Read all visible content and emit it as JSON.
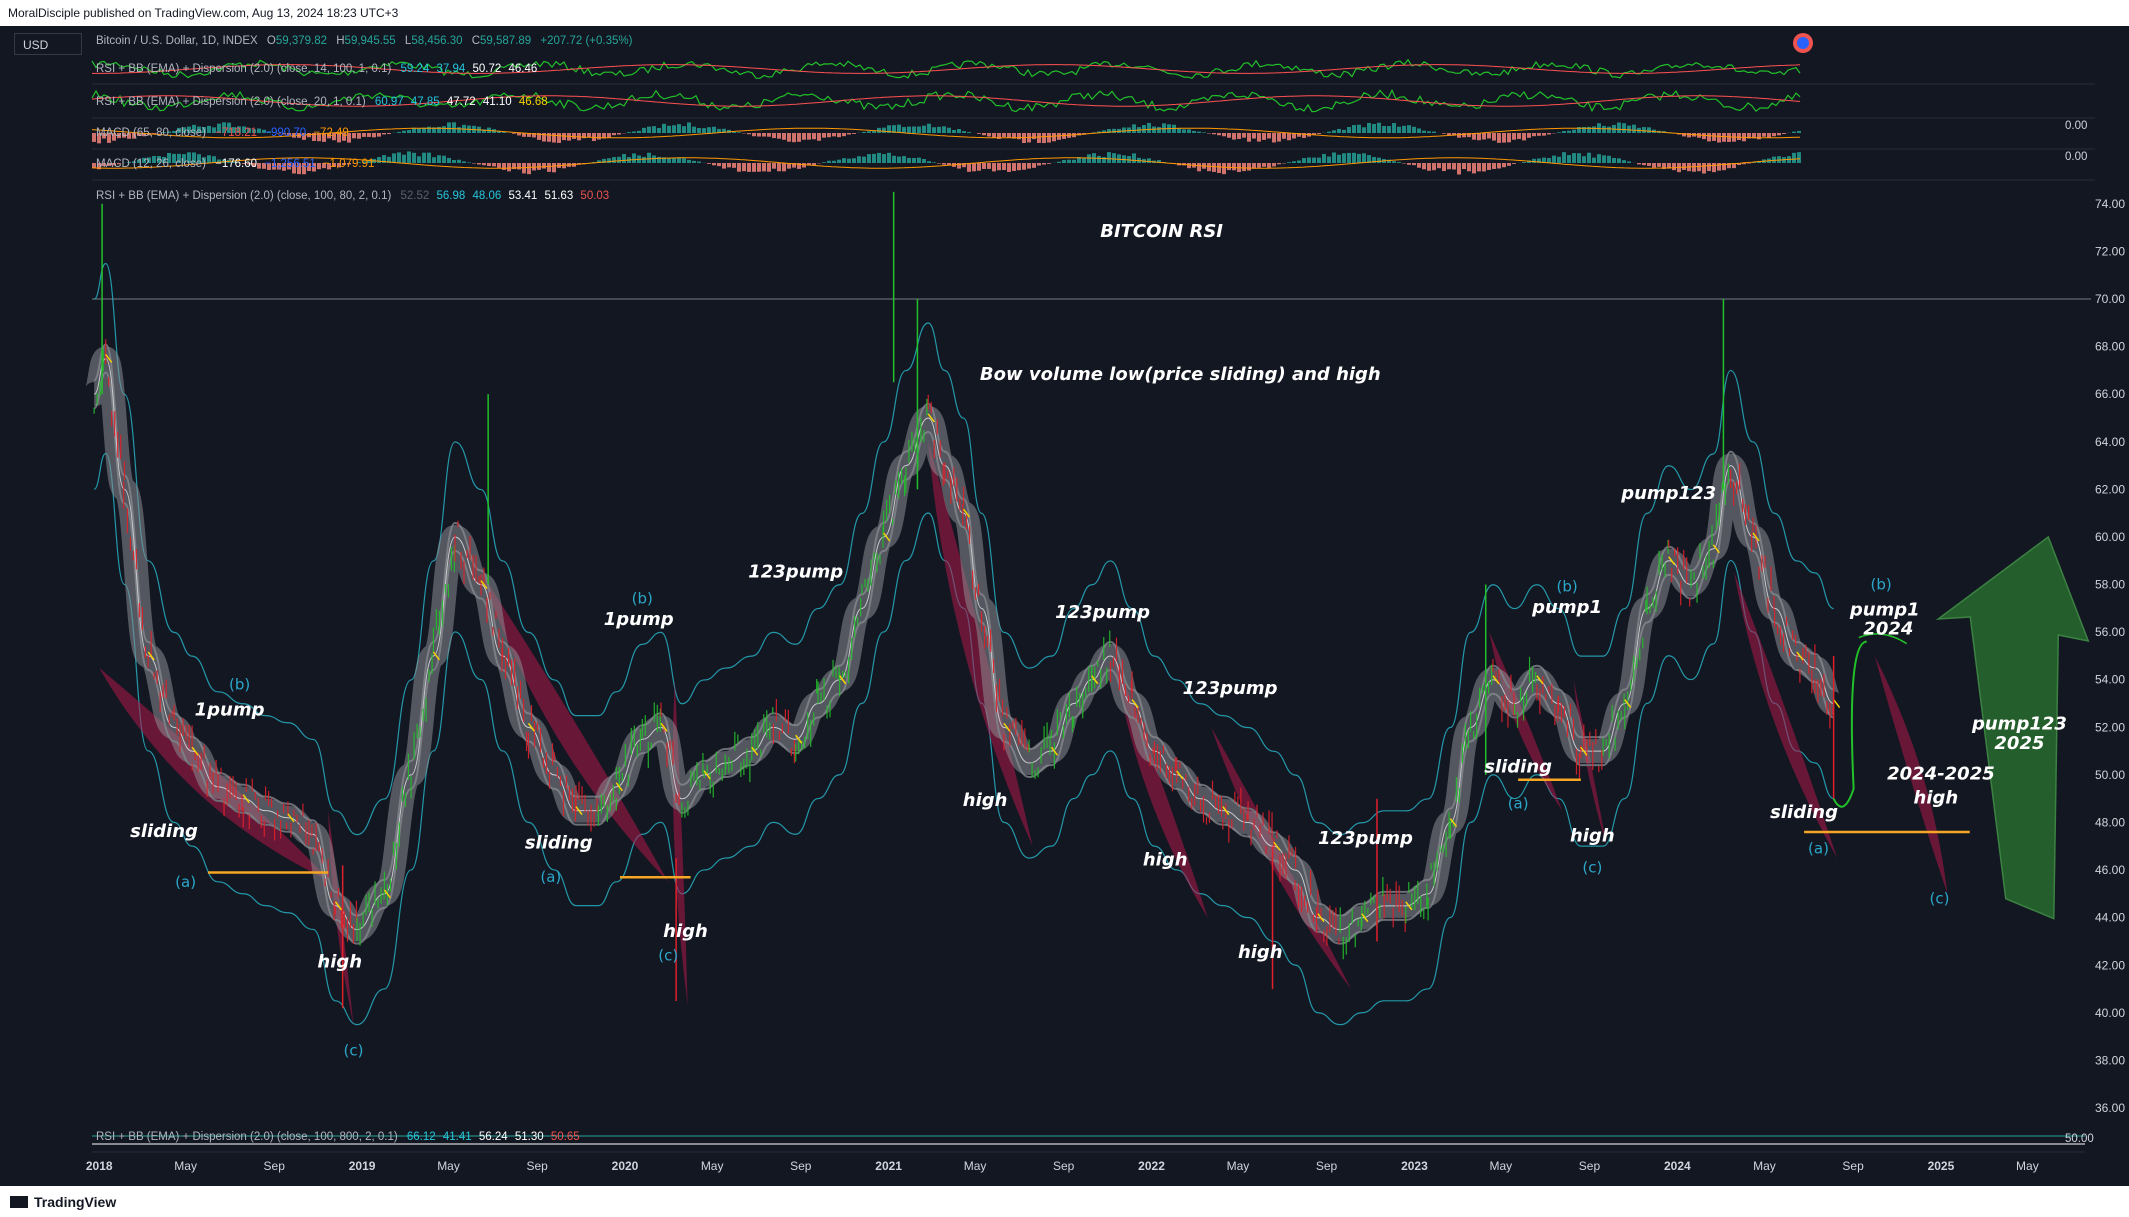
{
  "header": {
    "published": "MoralDisciple published on TradingView.com, Aug 13, 2024 18:23 UTC+3"
  },
  "footer": {
    "brand": "TradingView"
  },
  "currency": "USD",
  "symbol_legend": {
    "name": "Bitcoin / U.S. Dollar, 1D, INDEX",
    "open_label": "O",
    "open": "59,379.82",
    "high_label": "H",
    "high": "59,945.55",
    "low_label": "L",
    "low": "58,456.30",
    "close_label": "C",
    "close": "59,587.89",
    "change": "+207.72 (+0.35%)"
  },
  "pane_legends": [
    {
      "title": "RSI + BB (EMA) + Dispersion (2.0) (close, 14, 100, 1, 0.1)",
      "values": [
        "59.24",
        "37.94",
        "50.72",
        "46.46"
      ]
    },
    {
      "title": "RSI + BB (EMA) + Dispersion (2.0) (close, 20, 1, 0.1)",
      "values": [
        "60.97",
        "47.85",
        "47.72",
        "41.10",
        "46.68"
      ]
    },
    {
      "title": "MACD (65, 80, close)",
      "values": [
        "−718.21",
        "−990.70",
        "−72.49"
      ]
    },
    {
      "title": "MACD (12, 26, close)",
      "values": [
        "−176.60",
        "−1,256.51",
        "−1,079.91"
      ]
    },
    {
      "title": "RSI + BB (EMA) + Dispersion (2.0) (close, 100, 80, 2, 0.1)",
      "values": [
        "52.52",
        "56.98",
        "48.06",
        "53.41",
        "51.63",
        "50.03"
      ]
    },
    {
      "title": "RSI + BB (EMA) + Dispersion (2.0) (close, 100, 800, 2, 0.1)",
      "values": [
        "66.12",
        "41.41",
        "56.24",
        "51.30",
        "50.65"
      ]
    }
  ],
  "macd_zero_labels": [
    "0.00",
    "0.00"
  ],
  "bottom_pane_tick": "50.00",
  "colors": {
    "background": "#131722",
    "rsi_up": "#22c02a",
    "rsi_down": "#e0202a",
    "band": "#26a6b8",
    "ema_ribbon": "#8a8c92",
    "bow": "#b01848",
    "support": "#f5a623",
    "arrow": "#2e7d32",
    "annotation": "#ffffff",
    "wave_label": "#2aa7c8"
  },
  "chart_data": {
    "type": "line",
    "title": "BITCOIN RSI",
    "subtitle": "Bow volume low(price sliding) and high",
    "xlabel": "",
    "ylabel": "",
    "ylim": [
      35.5,
      75
    ],
    "xlim": [
      "2017-12-22",
      "2025-07-20"
    ],
    "grid": false,
    "y_ticks": [
      "74.00",
      "72.00",
      "70.00",
      "68.00",
      "66.00",
      "64.00",
      "62.00",
      "60.00",
      "58.00",
      "56.00",
      "54.00",
      "52.00",
      "50.00",
      "48.00",
      "46.00",
      "44.00",
      "42.00",
      "40.00",
      "38.00",
      "36.00"
    ],
    "x_ticks": [
      {
        "date": "2018-01-01",
        "label": "2018",
        "bold": true
      },
      {
        "date": "2018-05-01",
        "label": "May"
      },
      {
        "date": "2018-09-01",
        "label": "Sep"
      },
      {
        "date": "2019-01-01",
        "label": "2019",
        "bold": true
      },
      {
        "date": "2019-05-01",
        "label": "May"
      },
      {
        "date": "2019-09-01",
        "label": "Sep"
      },
      {
        "date": "2020-01-01",
        "label": "2020",
        "bold": true
      },
      {
        "date": "2020-05-01",
        "label": "May"
      },
      {
        "date": "2020-09-01",
        "label": "Sep"
      },
      {
        "date": "2021-01-01",
        "label": "2021",
        "bold": true
      },
      {
        "date": "2021-05-01",
        "label": "May"
      },
      {
        "date": "2021-09-01",
        "label": "Sep"
      },
      {
        "date": "2022-01-01",
        "label": "2022",
        "bold": true
      },
      {
        "date": "2022-05-01",
        "label": "May"
      },
      {
        "date": "2022-09-01",
        "label": "Sep"
      },
      {
        "date": "2023-01-01",
        "label": "2023",
        "bold": true
      },
      {
        "date": "2023-05-01",
        "label": "May"
      },
      {
        "date": "2023-09-01",
        "label": "Sep"
      },
      {
        "date": "2024-01-01",
        "label": "2024",
        "bold": true
      },
      {
        "date": "2024-05-01",
        "label": "May"
      },
      {
        "date": "2024-09-01",
        "label": "Sep"
      },
      {
        "date": "2025-01-01",
        "label": "2025",
        "bold": true
      },
      {
        "date": "2025-05-01",
        "label": "May"
      }
    ],
    "reference_line": 70,
    "series": [
      {
        "values_kind": "RSI EMA (approx.)",
        "x": [
          "2017-12-25",
          "2018-01-10",
          "2018-02-05",
          "2018-03-10",
          "2018-04-15",
          "2018-05-10",
          "2018-06-15",
          "2018-07-20",
          "2018-08-20",
          "2018-09-20",
          "2018-10-25",
          "2018-11-25",
          "2018-12-25",
          "2019-02-01",
          "2019-03-10",
          "2019-04-10",
          "2019-05-10",
          "2019-06-15",
          "2019-07-15",
          "2019-08-20",
          "2019-09-25",
          "2019-10-25",
          "2019-11-25",
          "2019-12-20",
          "2020-01-25",
          "2020-02-20",
          "2020-03-20",
          "2020-04-20",
          "2020-05-20",
          "2020-06-25",
          "2020-07-25",
          "2020-08-25",
          "2020-09-25",
          "2020-10-25",
          "2020-11-25",
          "2020-12-25",
          "2021-01-25",
          "2021-02-25",
          "2021-03-20",
          "2021-04-15",
          "2021-05-10",
          "2021-06-10",
          "2021-07-15",
          "2021-08-15",
          "2021-09-15",
          "2021-10-10",
          "2021-11-05",
          "2021-12-05",
          "2022-01-05",
          "2022-02-05",
          "2022-03-10",
          "2022-04-10",
          "2022-05-15",
          "2022-06-20",
          "2022-07-20",
          "2022-08-20",
          "2022-09-20",
          "2022-10-20",
          "2022-11-20",
          "2022-12-20",
          "2023-01-20",
          "2023-02-20",
          "2023-03-20",
          "2023-04-20",
          "2023-05-20",
          "2023-06-20",
          "2023-07-20",
          "2023-08-20",
          "2023-09-20",
          "2023-10-20",
          "2023-11-20",
          "2023-12-20",
          "2024-01-20",
          "2024-02-20",
          "2024-03-15",
          "2024-04-15",
          "2024-05-15",
          "2024-06-15",
          "2024-07-10",
          "2024-08-05"
        ],
        "values": [
          66,
          67.5,
          62,
          55,
          52,
          51,
          49.5,
          49,
          48.5,
          48.2,
          47.5,
          44.5,
          43.5,
          45,
          50,
          55,
          60,
          58,
          55,
          52,
          50,
          48.5,
          48.5,
          49.5,
          51.5,
          52,
          49,
          50,
          50.5,
          51,
          52,
          51.5,
          53,
          54,
          57,
          60,
          63,
          65,
          63,
          61,
          57,
          52,
          50.5,
          51,
          53,
          54,
          55,
          53,
          51,
          50,
          49,
          48.5,
          48,
          47,
          46,
          44,
          43.5,
          44,
          44.5,
          44.5,
          45,
          48,
          52,
          54,
          53,
          54,
          53,
          51,
          51,
          53,
          57,
          59,
          58,
          59.5,
          63,
          60,
          57,
          55,
          54.5,
          53
        ]
      },
      {
        "values_kind": "RSI daily extremes (approx.)",
        "x": [
          "2018-01-05",
          "2018-12-05",
          "2019-06-25",
          "2020-03-12",
          "2021-01-08",
          "2021-02-10",
          "2022-06-18",
          "2022-11-10",
          "2023-04-10",
          "2024-03-05",
          "2024-08-05"
        ],
        "values": [
          74,
          40.2,
          66,
          40.5,
          74.5,
          70,
          41,
          43,
          58,
          70,
          49
        ]
      }
    ],
    "annotations": [
      {
        "text": "BITCOIN RSI",
        "date": "2022-01-15",
        "y": 72.6
      },
      {
        "text": "Bow volume low(price sliding) and high",
        "date": "2022-02-10",
        "y": 66.6
      },
      {
        "text": "sliding",
        "date": "2018-04-01",
        "y": 47.4
      },
      {
        "text": "(a)",
        "date": "2018-05-01",
        "y": 45.3
      },
      {
        "text": "(b)",
        "date": "2018-07-15",
        "y": 53.6
      },
      {
        "text": "1pump",
        "date": "2018-07-01",
        "y": 52.5
      },
      {
        "text": "high",
        "date": "2018-12-01",
        "y": 41.9
      },
      {
        "text": "(c)",
        "date": "2018-12-20",
        "y": 38.2
      },
      {
        "text": "sliding",
        "date": "2019-10-01",
        "y": 46.9
      },
      {
        "text": "(a)",
        "date": "2019-09-20",
        "y": 45.5
      },
      {
        "text": "1pump",
        "date": "2020-01-20",
        "y": 56.3
      },
      {
        "text": "(b)",
        "date": "2020-01-25",
        "y": 57.2
      },
      {
        "text": "high",
        "date": "2020-03-25",
        "y": 43.2
      },
      {
        "text": "(c)",
        "date": "2020-03-01",
        "y": 42.2
      },
      {
        "text": "123pump",
        "date": "2020-08-25",
        "y": 58.3
      },
      {
        "text": "high",
        "date": "2021-05-15",
        "y": 48.7
      },
      {
        "text": "123pump",
        "date": "2021-10-25",
        "y": 56.6
      },
      {
        "text": "high",
        "date": "2022-01-20",
        "y": 46.2
      },
      {
        "text": "123pump",
        "date": "2022-04-20",
        "y": 53.4
      },
      {
        "text": "high",
        "date": "2022-06-01",
        "y": 42.3
      },
      {
        "text": "123pump",
        "date": "2022-10-25",
        "y": 47.1
      },
      {
        "text": "sliding",
        "date": "2023-05-25",
        "y": 50.1
      },
      {
        "text": "(a)",
        "date": "2023-05-25",
        "y": 48.6
      },
      {
        "text": "pump1",
        "date": "2023-08-01",
        "y": 56.8
      },
      {
        "text": "(b)",
        "date": "2023-08-01",
        "y": 57.7
      },
      {
        "text": "high",
        "date": "2023-09-05",
        "y": 47.2
      },
      {
        "text": "(c)",
        "date": "2023-09-05",
        "y": 45.9
      },
      {
        "text": "pump123",
        "date": "2023-12-20",
        "y": 61.6
      },
      {
        "text": "sliding",
        "date": "2024-06-25",
        "y": 48.2
      },
      {
        "text": "(a)",
        "date": "2024-07-15",
        "y": 46.7
      },
      {
        "text": "pump1",
        "date": "2024-10-15",
        "y": 56.7
      },
      {
        "text": "2024",
        "date": "2024-10-20",
        "y": 55.9
      },
      {
        "text": "(b)",
        "date": "2024-10-10",
        "y": 57.8
      },
      {
        "text": "2024-2025",
        "date": "2025-01-01",
        "y": 49.8
      },
      {
        "text": "high",
        "date": "2024-12-25",
        "y": 48.8
      },
      {
        "text": "(c)",
        "date": "2024-12-30",
        "y": 44.6
      },
      {
        "text": "pump123",
        "date": "2025-04-20",
        "y": 51.9
      },
      {
        "text": "2025",
        "date": "2025-04-20",
        "y": 51.1
      }
    ],
    "support_lines": [
      {
        "from": "2018-06-01",
        "to": "2018-11-15",
        "y": 45.9
      },
      {
        "from": "2019-12-25",
        "to": "2020-04-01",
        "y": 45.7
      },
      {
        "from": "2023-05-25",
        "to": "2023-08-20",
        "y": 49.8
      },
      {
        "from": "2024-06-25",
        "to": "2025-02-10",
        "y": 47.6
      }
    ],
    "projection": {
      "label": "pump123 2025",
      "direction": "up",
      "from_date": "2025-04-01",
      "from_y": 44.8,
      "to_date": "2025-05-30",
      "to_y": 60
    }
  }
}
